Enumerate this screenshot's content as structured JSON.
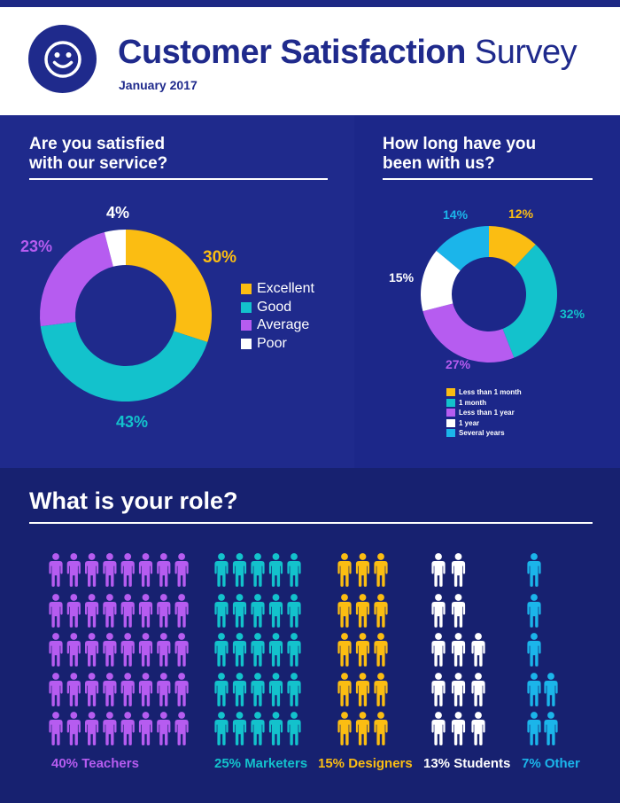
{
  "header": {
    "title_bold": "Customer Satisfaction",
    "title_light": "Survey",
    "subtitle": "January 2017",
    "logo_icon": "smiley-face-icon"
  },
  "colors": {
    "navy": "#1f2a8c",
    "yellow": "#fbbd12",
    "teal": "#13c2cc",
    "purple": "#b65cf0",
    "white": "#ffffff",
    "cyan": "#1bb5ea"
  },
  "chart_data": [
    {
      "type": "pie",
      "title": "Are you satisfied with our service?",
      "title_lines": [
        "Are you satisfied",
        "with our service?"
      ],
      "categories": [
        "Excellent",
        "Good",
        "Average",
        "Poor"
      ],
      "values": [
        30,
        43,
        23,
        4
      ],
      "labels": [
        "30%",
        "43%",
        "23%",
        "4%"
      ],
      "colors": [
        "#fbbd12",
        "#13c2cc",
        "#b65cf0",
        "#ffffff"
      ],
      "legend": "right"
    },
    {
      "type": "pie",
      "title": "How long have you been with us?",
      "title_lines": [
        "How long have you",
        "been with us?"
      ],
      "categories": [
        "Less than 1 month",
        "1 month",
        "Less than 1 year",
        "1 year",
        "Several years"
      ],
      "values": [
        12,
        32,
        27,
        15,
        14
      ],
      "labels": [
        "12%",
        "32%",
        "27%",
        "15%",
        "14%"
      ],
      "colors": [
        "#fbbd12",
        "#13c2cc",
        "#b65cf0",
        "#ffffff",
        "#1bb5ea"
      ],
      "legend": "bottom"
    },
    {
      "type": "bar",
      "title": "What is your role?",
      "categories": [
        "Teachers",
        "Marketers",
        "Designers",
        "Students",
        "Other"
      ],
      "values": [
        40,
        25,
        15,
        13,
        7
      ],
      "labels": [
        "40% Teachers",
        "25% Marketers",
        "15% Designers",
        "13% Students",
        "7% Other"
      ],
      "colors": [
        "#b65cf0",
        "#13c2cc",
        "#fbbd12",
        "#ffffff",
        "#1bb5ea"
      ],
      "unit_icon": "person-icon"
    }
  ]
}
